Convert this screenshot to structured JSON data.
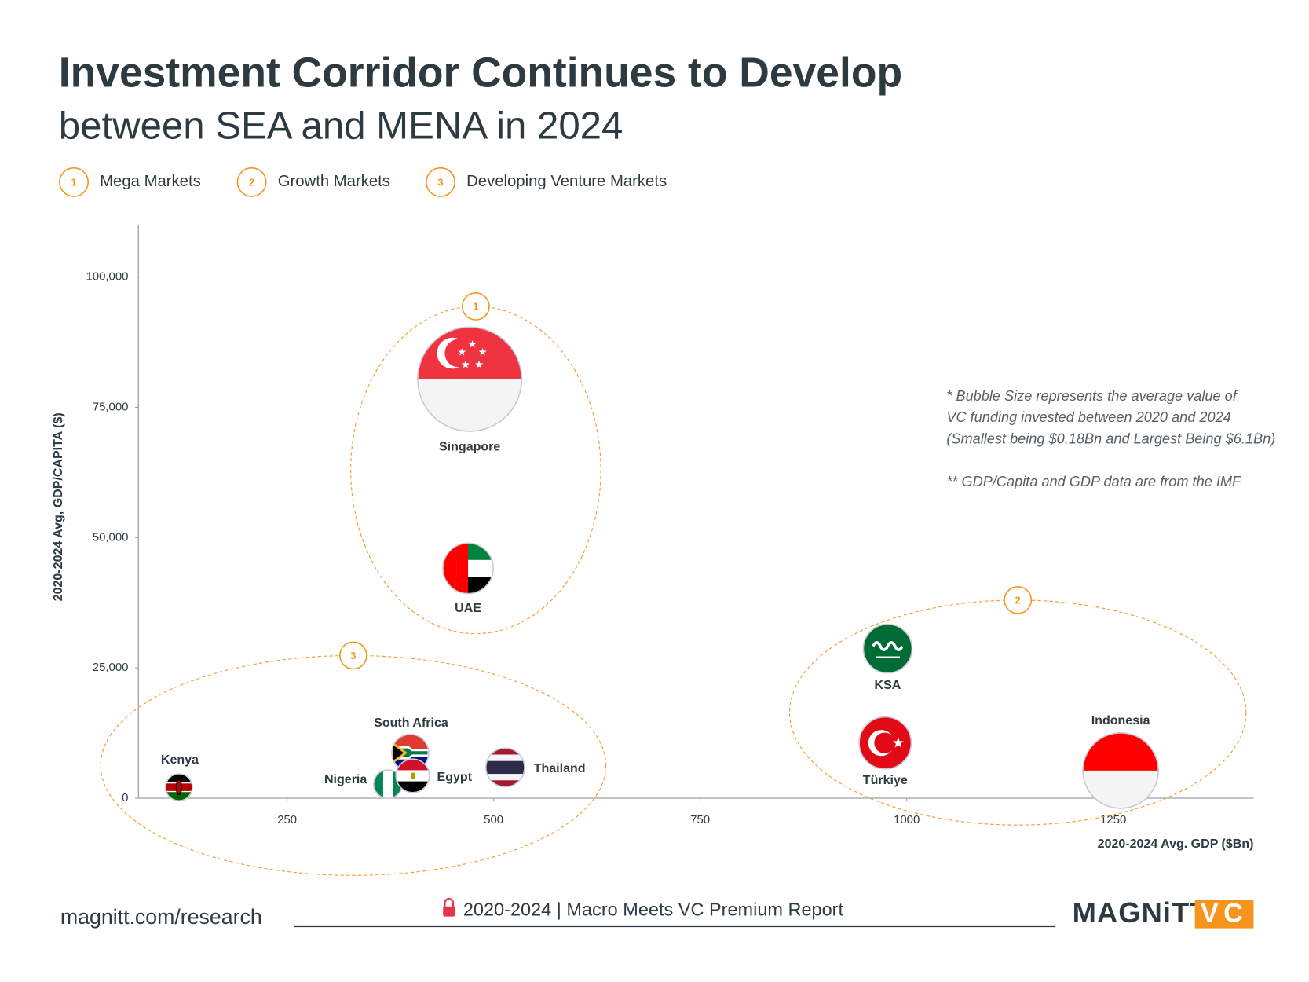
{
  "chart_data": {
    "type": "bubble",
    "title": "Investment Corridor Continues to Develop",
    "subtitle": "between SEA and MENA in 2024",
    "groups": [
      {
        "number": "1",
        "name": "Mega Markets"
      },
      {
        "number": "2",
        "name": "Growth Markets"
      },
      {
        "number": "3",
        "name": "Developing Venture Markets"
      }
    ],
    "x_label": "2020-2024 Avg. GDP ($Bn)",
    "y_label": "2020-2024 Avg, GDP/CAPITA ($)",
    "xlim": [
      70,
      1420
    ],
    "ylim": [
      0,
      110000
    ],
    "xticks": [
      250,
      500,
      750,
      1000,
      1250
    ],
    "yticks": [
      0,
      {
        "value": 25000,
        "label": "25,000"
      },
      {
        "value": 50000,
        "label": "50,000"
      },
      {
        "value": 75000,
        "label": "75,000"
      },
      {
        "value": 100000,
        "label": "100,000"
      }
    ],
    "labels": [
      "Singapore",
      "UAE",
      "KSA",
      "Türkiye",
      "Indonesia",
      "Thailand",
      "South Africa",
      "Nigeria",
      "Egypt",
      "Kenya"
    ],
    "x": [
      471,
      469,
      977,
      974,
      1259,
      514,
      399,
      372,
      402,
      119
    ],
    "values": [
      80400,
      44100,
      28700,
      10600,
      5300,
      5900,
      8700,
      2700,
      4300,
      2100
    ],
    "sizes": [
      6.1,
      1.98,
      1.85,
      2.11,
      3.91,
      1.08,
      0.95,
      0.31,
      0.69,
      0.18
    ],
    "notes": [
      "* Bubble Size represents the average value of",
      "VC funding invested between 2020 and 2024",
      "(Smallest being $0.18Bn and Largest Being $6.1Bn)",
      "** GDP/Capita and GDP data are from the IMF"
    ],
    "footer": {
      "url": "magnitt.com/research",
      "report": "2020-2024 | Macro Meets VC Premium Report",
      "logo": "MAGNiTT",
      "logo_suffix": "VC"
    }
  }
}
